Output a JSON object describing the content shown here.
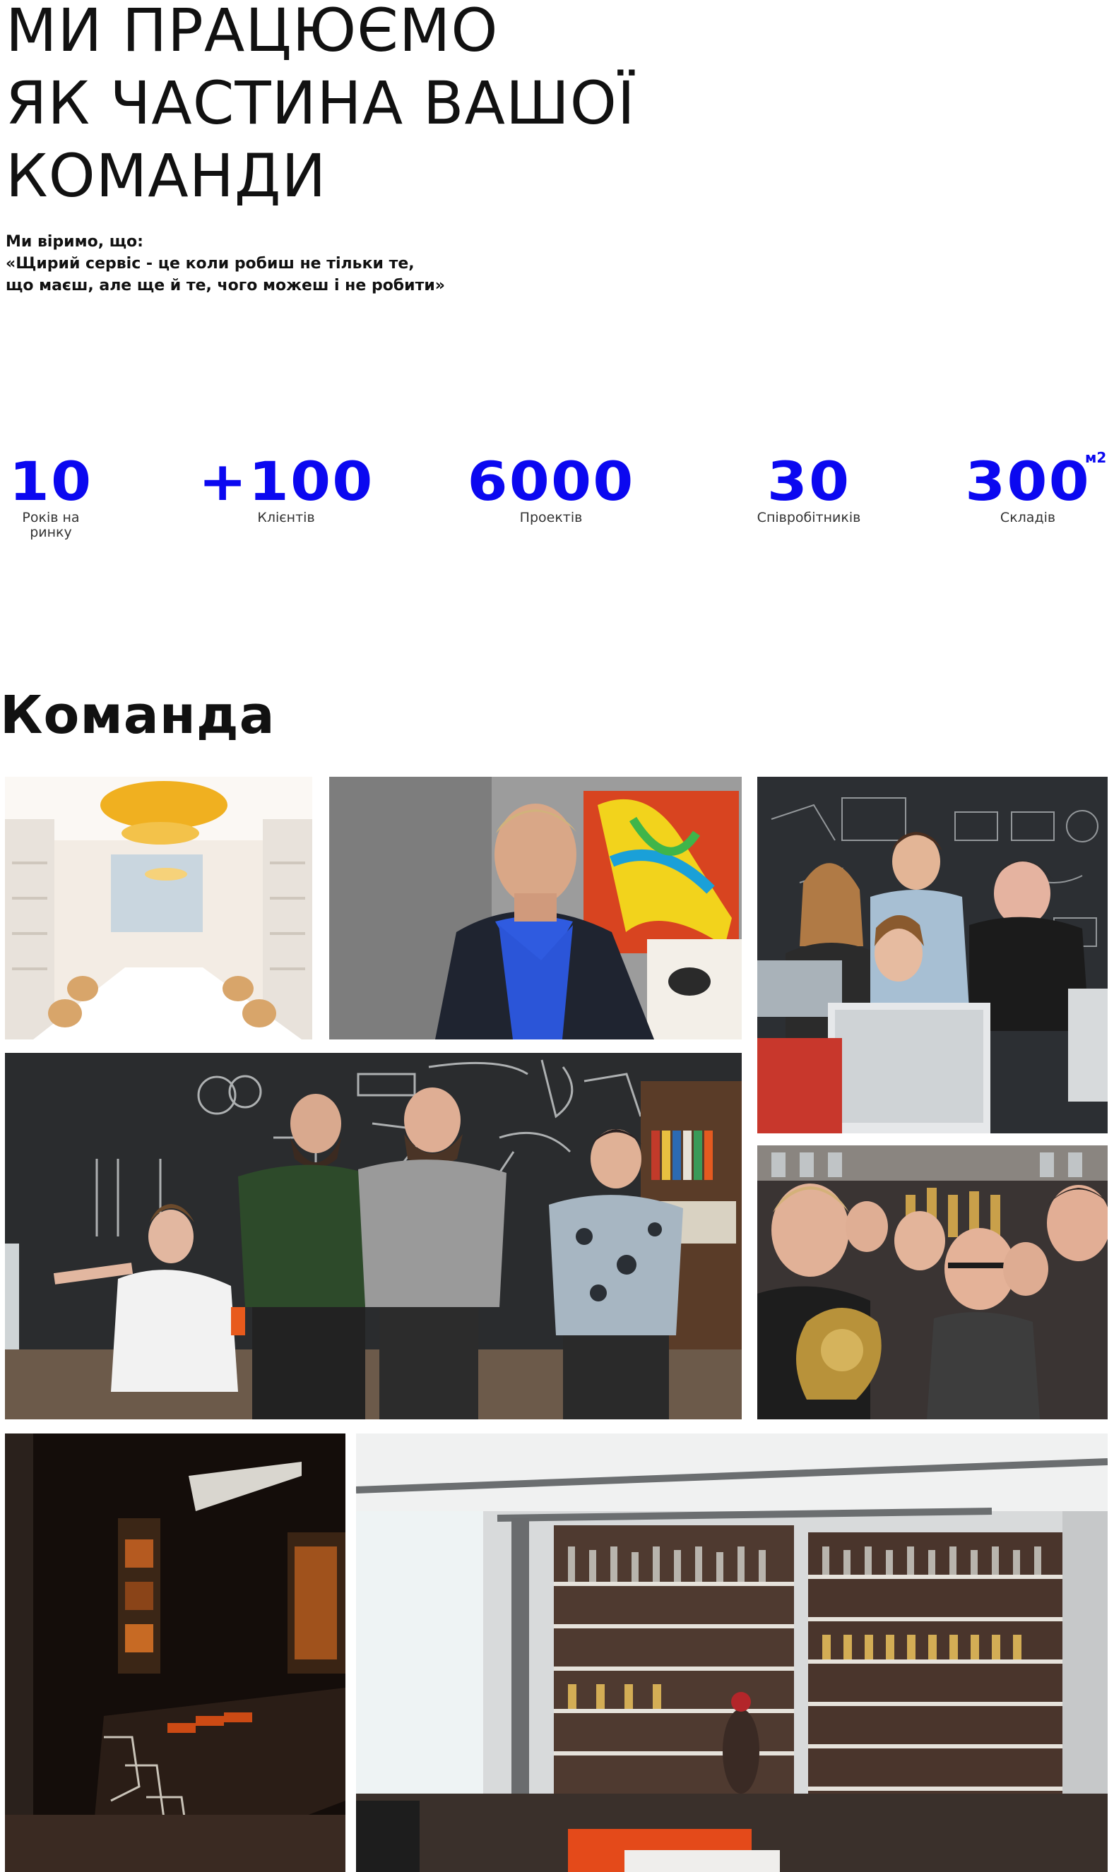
{
  "hero": {
    "title_lines": [
      "МИ ПРАЦЮЄМО",
      "ЯК ЧАСТИНА ВАШОЇ",
      "КОМАНДИ"
    ]
  },
  "intro": {
    "lines": [
      "Ми віримо, що:",
      "«Щирий сервіс - це коли робиш не тільки те,",
      "що маєш, але ще й те, чого можеш і не робити»"
    ]
  },
  "stats": [
    {
      "value": "10",
      "label_lines": [
        "Років на",
        "ринку"
      ]
    },
    {
      "value": "+100",
      "label_lines": [
        "Клієнтів"
      ]
    },
    {
      "value": "6000",
      "label_lines": [
        "Проектів"
      ]
    },
    {
      "value": "30",
      "label_lines": [
        "Співробітників"
      ]
    },
    {
      "value": "300",
      "superscript": "м2",
      "label_lines": [
        "Складів"
      ]
    }
  ],
  "team": {
    "heading": "Команда",
    "photos": [
      {
        "name": "meeting-room-photo"
      },
      {
        "name": "man-blue-shirt-photo"
      },
      {
        "name": "team-at-computers-photo"
      },
      {
        "name": "team-chalkboard-photo"
      },
      {
        "name": "team-selfie-awards-photo"
      },
      {
        "name": "dark-conference-room-photo"
      },
      {
        "name": "office-awards-shelves-photo"
      }
    ]
  },
  "colors": {
    "accent": "#0b08f0",
    "text": "#111111"
  }
}
